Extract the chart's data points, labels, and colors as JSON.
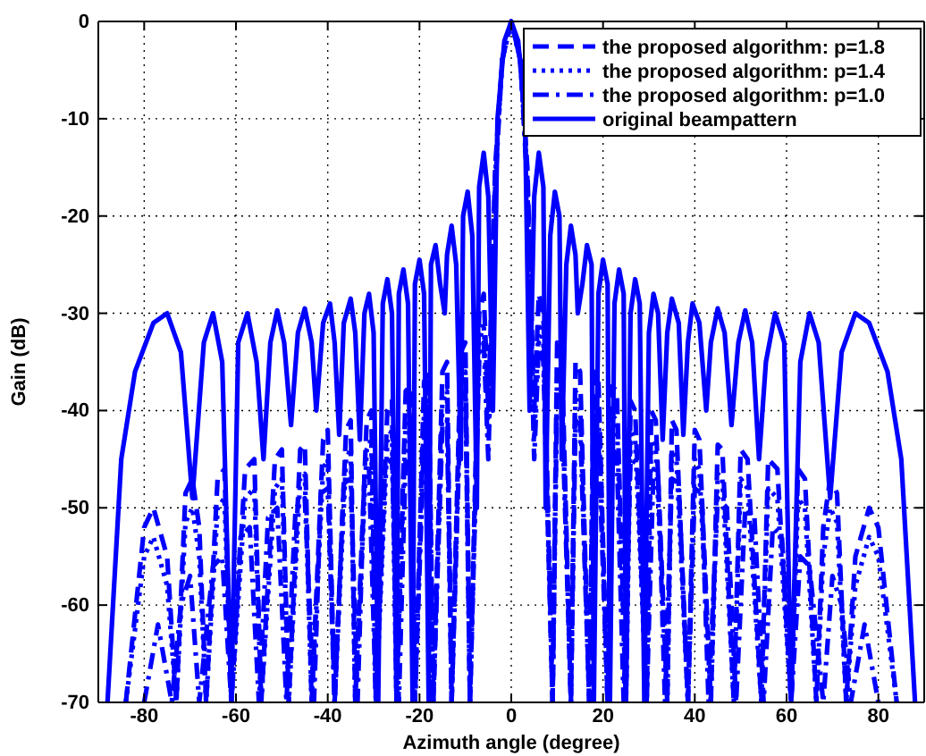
{
  "chart_data": {
    "type": "line",
    "xlabel": "Azimuth angle (degree)",
    "ylabel": "Gain (dB)",
    "xlim": [
      -90,
      90
    ],
    "ylim": [
      -70,
      0
    ],
    "xticks": [
      -80,
      -60,
      -40,
      -20,
      0,
      20,
      40,
      60,
      80
    ],
    "yticks": [
      0,
      -10,
      -20,
      -30,
      -40,
      -50,
      -60,
      -70
    ],
    "grid": true,
    "legend": "top right",
    "series": [
      {
        "name": "the proposed algorithm: p=1.8",
        "color": "#0000ff",
        "line_style": "dashed",
        "x": [
          -84,
          -80,
          -78,
          -75,
          -73,
          -71,
          -69.5,
          -68,
          -66.5,
          -64,
          -62.5,
          -61,
          -58,
          -56,
          -54.5,
          -51.5,
          -50,
          -48.5,
          -46,
          -45,
          -43.5,
          -41,
          -40,
          -38.5,
          -36,
          -35,
          -34,
          -31.5,
          -30.5,
          -29.5,
          -27,
          -26,
          -25,
          -23,
          -22,
          -21,
          -19,
          -18,
          -17,
          -15,
          -14,
          -13,
          -11,
          -10,
          -9,
          -7,
          -6,
          -5,
          -3.5,
          -2,
          0,
          2,
          3.5,
          5,
          6,
          7,
          9,
          10,
          11,
          13,
          14,
          15,
          17,
          18,
          19,
          21,
          22,
          23,
          25,
          26,
          27,
          29.5,
          30.5,
          31.5,
          34,
          35,
          36,
          38.5,
          40,
          41,
          43.5,
          45,
          46,
          48.5,
          50,
          51.5,
          54.5,
          56,
          58,
          61,
          62.5,
          64,
          66.5,
          68,
          69.5,
          71,
          73,
          75,
          78,
          80,
          84
        ],
        "values": [
          -70,
          -52,
          -50,
          -55,
          -70,
          -48.5,
          -47,
          -52,
          -70,
          -47,
          -46,
          -70,
          -46,
          -45,
          -70,
          -45,
          -44,
          -70,
          -44,
          -43.5,
          -70,
          -43,
          -42,
          -70,
          -42,
          -41,
          -70,
          -41,
          -40,
          -70,
          -40,
          -39,
          -70,
          -38,
          -37.5,
          -70,
          -37,
          -36,
          -70,
          -36,
          -35,
          -70,
          -34,
          -33,
          -70,
          -30,
          -28,
          -40,
          -15,
          -4,
          0,
          -4,
          -15,
          -40,
          -28,
          -30,
          -70,
          -33,
          -34,
          -70,
          -35,
          -36,
          -70,
          -36,
          -37,
          -70,
          -37.5,
          -38,
          -70,
          -39,
          -40,
          -70,
          -40,
          -41,
          -70,
          -41,
          -42,
          -70,
          -42,
          -43,
          -70,
          -43.5,
          -44,
          -70,
          -44,
          -45,
          -70,
          -45,
          -46,
          -70,
          -46,
          -47,
          -70,
          -52,
          -47,
          -48.5,
          -70,
          -55,
          -50,
          -52,
          -70
        ]
      },
      {
        "name": "the proposed algorithm: p=1.4",
        "color": "#0000ff",
        "line_style": "dotted",
        "x": [
          -84,
          -80,
          -78,
          -75,
          -73,
          -71,
          -69.5,
          -68,
          -66.5,
          -64,
          -62.5,
          -61,
          -58,
          -56,
          -54.5,
          -51.5,
          -50,
          -48.5,
          -46,
          -45,
          -43.5,
          -41,
          -40,
          -38.5,
          -36,
          -35,
          -34,
          -31.5,
          -30.5,
          -29.5,
          -27,
          -26,
          -25,
          -23,
          -22,
          -21,
          -19,
          -18,
          -17,
          -15,
          -14,
          -13,
          -11,
          -10,
          -9,
          -7,
          -6,
          -5,
          -3.5,
          -2,
          0,
          2,
          3.5,
          5,
          6,
          7,
          9,
          10,
          11,
          13,
          14,
          15,
          17,
          18,
          19,
          21,
          22,
          23,
          25,
          26,
          27,
          29.5,
          30.5,
          31.5,
          34,
          35,
          36,
          38.5,
          40,
          41,
          43.5,
          45,
          46,
          48.5,
          50,
          51.5,
          54.5,
          56,
          58,
          61,
          62.5,
          64,
          66.5,
          68,
          69.5,
          71,
          73,
          75,
          78,
          80,
          84
        ],
        "values": [
          -70,
          -55,
          -53,
          -58,
          -70,
          -51.5,
          -50,
          -55,
          -70,
          -50,
          -49,
          -70,
          -49,
          -48,
          -70,
          -48,
          -47,
          -70,
          -47,
          -46.5,
          -70,
          -46,
          -45,
          -70,
          -45,
          -44,
          -70,
          -44,
          -43,
          -70,
          -43,
          -42,
          -70,
          -41,
          -40.5,
          -70,
          -40,
          -39,
          -70,
          -39,
          -38,
          -70,
          -37,
          -36,
          -70,
          -33,
          -31,
          -43,
          -16,
          -4,
          0,
          -4,
          -16,
          -43,
          -31,
          -33,
          -70,
          -36,
          -37,
          -70,
          -38,
          -39,
          -70,
          -39,
          -40,
          -70,
          -40.5,
          -41,
          -70,
          -42,
          -43,
          -70,
          -43,
          -44,
          -70,
          -44,
          -45,
          -70,
          -45,
          -46,
          -70,
          -46.5,
          -47,
          -70,
          -47,
          -48,
          -70,
          -48,
          -49,
          -70,
          -49,
          -50,
          -70,
          -55,
          -50,
          -51.5,
          -70,
          -58,
          -53,
          -55,
          -70
        ]
      },
      {
        "name": "the proposed algorithm: p=1.0",
        "color": "#0000ff",
        "line_style": "dashdot",
        "x": [
          -80,
          -77,
          -74,
          -72,
          -70,
          -68,
          -65,
          -63,
          -61,
          -59,
          -57,
          -55,
          -53,
          -51,
          -49,
          -47,
          -45,
          -43,
          -41.5,
          -40,
          -38.5,
          -36.5,
          -35,
          -33.5,
          -32,
          -31,
          -29.5,
          -27.5,
          -26,
          -24.5,
          -23,
          -22,
          -21,
          -19,
          -18,
          -17,
          -15,
          -14,
          -13,
          -11,
          -10,
          -9,
          -7,
          -6,
          -5,
          -3.5,
          -2,
          0,
          2,
          3.5,
          5,
          6,
          7,
          9,
          10,
          11,
          13,
          14,
          15,
          17,
          18,
          19,
          21,
          22,
          23,
          24.5,
          26,
          27.5,
          29.5,
          31,
          32,
          33.5,
          35,
          36.5,
          38.5,
          40,
          41.5,
          43,
          45,
          47,
          49,
          51,
          53,
          55,
          57,
          59,
          61,
          63,
          65,
          68,
          70,
          72,
          74,
          77,
          80
        ],
        "values": [
          -70,
          -62,
          -70,
          -60,
          -57,
          -70,
          -56,
          -55,
          -70,
          -53,
          -52,
          -70,
          -51,
          -50,
          -70,
          -50,
          -49,
          -70,
          -48.5,
          -48,
          -70,
          -47.5,
          -47,
          -70,
          -46.5,
          -46,
          -70,
          -45.5,
          -45,
          -70,
          -44.5,
          -44,
          -70,
          -43,
          -42,
          -70,
          -41.5,
          -41,
          -70,
          -39,
          -38,
          -70,
          -35,
          -33,
          -45,
          -17,
          -4,
          0,
          -4,
          -17,
          -45,
          -33,
          -35,
          -70,
          -38,
          -39,
          -70,
          -41,
          -41.5,
          -70,
          -42,
          -43,
          -70,
          -44,
          -44.5,
          -70,
          -45,
          -45.5,
          -70,
          -46,
          -46.5,
          -70,
          -47,
          -47.5,
          -70,
          -48,
          -48.5,
          -70,
          -49,
          -50,
          -70,
          -50,
          -51,
          -70,
          -52,
          -53,
          -70,
          -55,
          -56,
          -70,
          -57,
          -60,
          -70,
          -62,
          -70
        ]
      },
      {
        "name": "original beampattern",
        "color": "#0000ff",
        "line_style": "solid",
        "x": [
          -88,
          -85,
          -82,
          -78,
          -75,
          -72,
          -69.5,
          -67,
          -65,
          -63,
          -61,
          -59.5,
          -57.5,
          -55.5,
          -54,
          -52.5,
          -51,
          -49.5,
          -48,
          -46.5,
          -45,
          -43.5,
          -42.5,
          -41,
          -39.5,
          -38.5,
          -37.5,
          -36.5,
          -35,
          -34,
          -33,
          -32,
          -31,
          -30,
          -29,
          -28,
          -27,
          -26,
          -25,
          -24.5,
          -23.5,
          -22.5,
          -21.5,
          -21,
          -20,
          -19,
          -18,
          -17.5,
          -16.5,
          -15.5,
          -14.5,
          -14,
          -13,
          -12,
          -11,
          -10.5,
          -9.5,
          -8.5,
          -7.5,
          -7,
          -6,
          -5,
          -4,
          -3,
          -1.5,
          0,
          1.5,
          3,
          4,
          5,
          6,
          7,
          7.5,
          8.5,
          9.5,
          10.5,
          11,
          12,
          13,
          14,
          14.5,
          15.5,
          16.5,
          17.5,
          18,
          19,
          20,
          21,
          21.5,
          22.5,
          23.5,
          24.5,
          25,
          26,
          27,
          28,
          29,
          30,
          31,
          32,
          33,
          34,
          35,
          36.5,
          37.5,
          38.5,
          39.5,
          41,
          42.5,
          43.5,
          45,
          46.5,
          48,
          49.5,
          51,
          52.5,
          54,
          55.5,
          57.5,
          59.5,
          61,
          63,
          65,
          67,
          69.5,
          72,
          75,
          78,
          82,
          85,
          88
        ],
        "values": [
          -70,
          -45,
          -36,
          -31,
          -30,
          -34,
          -49,
          -33,
          -30,
          -35,
          -70,
          -33,
          -30,
          -35,
          -45,
          -33,
          -29.7,
          -33,
          -41.5,
          -32,
          -29.5,
          -33,
          -40,
          -31,
          -29,
          -33,
          -42.5,
          -31,
          -28.5,
          -32,
          -43,
          -30,
          -28,
          -32,
          -70,
          -29,
          -26.5,
          -30,
          -70,
          -28,
          -25.5,
          -29,
          -70,
          -27,
          -24.5,
          -28,
          -70,
          -25,
          -23,
          -27,
          -30,
          -24,
          -21,
          -25,
          -45,
          -20,
          -17.5,
          -22,
          -50,
          -17,
          -13.5,
          -18,
          -40,
          -10,
          -2,
          0,
          -2,
          -10,
          -40,
          -18,
          -13.5,
          -17,
          -50,
          -22,
          -17.5,
          -20,
          -45,
          -25,
          -21,
          -24,
          -30,
          -27,
          -23,
          -25,
          -70,
          -28,
          -24.5,
          -27,
          -70,
          -29,
          -25.5,
          -28,
          -70,
          -30,
          -26.5,
          -29,
          -70,
          -32,
          -28,
          -30,
          -43,
          -32,
          -28.5,
          -31,
          -42.5,
          -33,
          -29,
          -31,
          -40,
          -33,
          -29.5,
          -32,
          -41.5,
          -33,
          -29.7,
          -33,
          -45,
          -35,
          -30,
          -33,
          -70,
          -35,
          -30,
          -33,
          -49,
          -34,
          -30,
          -31,
          -36,
          -45,
          -70
        ]
      }
    ]
  }
}
